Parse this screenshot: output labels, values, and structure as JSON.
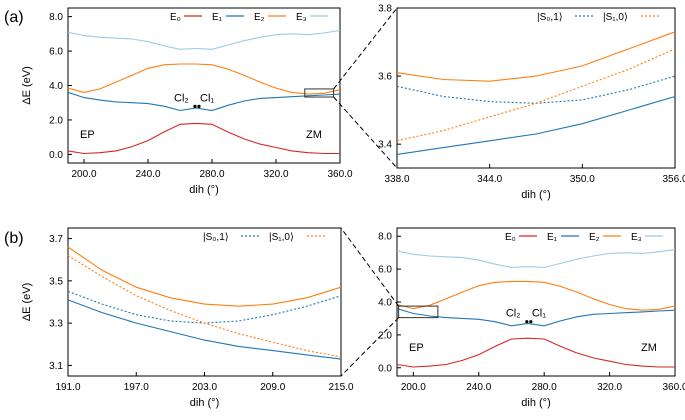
{
  "panel_labels": [
    "(a)",
    "(b)"
  ],
  "colors": {
    "E0": "#d62728",
    "E1": "#1f77b4",
    "E2": "#ff7f0e",
    "E3": "#9ecae1",
    "S0": "#1f77b4",
    "S1": "#ff7f0e"
  },
  "chart_data": [
    {
      "id": "a-left",
      "type": "line",
      "xlabel": "dih (°)",
      "ylabel": "ΔE (eV)",
      "xlim": [
        190,
        360
      ],
      "ylim": [
        -0.5,
        8.5
      ],
      "xticks": [
        "200.0",
        "240.0",
        "280.0",
        "320.0",
        "360.0"
      ],
      "yticks": [
        "0.0",
        "2.0",
        "4.0",
        "6.0",
        "8.0"
      ],
      "legend": [
        "E0",
        "E1",
        "E2",
        "E3"
      ],
      "legend_text": {
        "E0": "E₀",
        "E1": "E₁",
        "E2": "E₂",
        "E3": "E₃"
      },
      "annotations": {
        "ep": "EP",
        "zm": "ZM",
        "cl2": "Cl₂",
        "cl1": "Cl₁"
      },
      "series": [
        {
          "name": "E0",
          "x": [
            190,
            200,
            210,
            220,
            230,
            240,
            250,
            260,
            270,
            280,
            290,
            300,
            310,
            320,
            330,
            340,
            350,
            360
          ],
          "y": [
            0.2,
            0.05,
            0.1,
            0.2,
            0.45,
            0.8,
            1.3,
            1.75,
            1.8,
            1.75,
            1.3,
            0.9,
            0.6,
            0.4,
            0.2,
            0.1,
            0.05,
            0.05
          ]
        },
        {
          "name": "E1",
          "x": [
            190,
            200,
            210,
            220,
            230,
            240,
            250,
            260,
            270,
            280,
            290,
            300,
            310,
            320,
            330,
            340,
            350,
            360
          ],
          "y": [
            3.6,
            3.3,
            3.15,
            3.05,
            3.0,
            2.95,
            2.8,
            2.55,
            2.7,
            2.55,
            2.85,
            3.1,
            3.25,
            3.3,
            3.35,
            3.4,
            3.45,
            3.5
          ]
        },
        {
          "name": "E2",
          "x": [
            190,
            200,
            210,
            220,
            230,
            240,
            250,
            260,
            270,
            280,
            290,
            300,
            310,
            320,
            330,
            340,
            350,
            360
          ],
          "y": [
            3.85,
            3.6,
            3.8,
            4.2,
            4.6,
            5.0,
            5.2,
            5.25,
            5.25,
            5.2,
            4.95,
            4.6,
            4.2,
            3.85,
            3.6,
            3.5,
            3.55,
            3.75
          ]
        },
        {
          "name": "E3",
          "x": [
            190,
            200,
            210,
            220,
            230,
            240,
            250,
            260,
            270,
            280,
            290,
            300,
            310,
            320,
            330,
            340,
            350,
            360
          ],
          "y": [
            7.1,
            6.9,
            6.8,
            6.75,
            6.7,
            6.55,
            6.3,
            6.1,
            6.15,
            6.1,
            6.35,
            6.6,
            6.8,
            6.95,
            7.0,
            6.95,
            7.05,
            7.2
          ]
        }
      ]
    },
    {
      "id": "a-right",
      "type": "line",
      "xlabel": "dih (°)",
      "ylabel": "",
      "xlim": [
        338,
        356
      ],
      "ylim": [
        3.33,
        3.8
      ],
      "xticks": [
        "338.0",
        "344.0",
        "350.0",
        "356.0"
      ],
      "yticks": [
        "3.4",
        "3.6",
        "3.8"
      ],
      "legend": [
        "S0",
        "S1"
      ],
      "legend_text": {
        "S0": "|S₀,1⟩",
        "S1": "|S₁,0⟩"
      },
      "series": [
        {
          "name": "E1",
          "style": "solid",
          "x": [
            338,
            341,
            344,
            347,
            350,
            353,
            356
          ],
          "y": [
            3.37,
            3.39,
            3.41,
            3.43,
            3.46,
            3.5,
            3.54
          ]
        },
        {
          "name": "E2",
          "style": "solid",
          "x": [
            338,
            341,
            344,
            347,
            350,
            353,
            356
          ],
          "y": [
            3.61,
            3.59,
            3.585,
            3.6,
            3.63,
            3.68,
            3.73
          ]
        },
        {
          "name": "S0",
          "style": "dotted",
          "x": [
            338,
            341,
            344,
            347,
            350,
            353,
            356
          ],
          "y": [
            3.57,
            3.54,
            3.525,
            3.52,
            3.53,
            3.56,
            3.6
          ]
        },
        {
          "name": "S1",
          "style": "dotted",
          "x": [
            338,
            341,
            344,
            347,
            350,
            353,
            356
          ],
          "y": [
            3.41,
            3.44,
            3.48,
            3.52,
            3.57,
            3.62,
            3.68
          ]
        }
      ]
    },
    {
      "id": "b-left",
      "type": "line",
      "xlabel": "dih (°)",
      "ylabel": "ΔE (eV)",
      "xlim": [
        191,
        215
      ],
      "ylim": [
        3.05,
        3.75
      ],
      "xticks": [
        "191.0",
        "197.0",
        "203.0",
        "209.0",
        "215.0"
      ],
      "yticks": [
        "3.1",
        "3.3",
        "3.5",
        "3.7"
      ],
      "legend": [
        "S0",
        "S1"
      ],
      "legend_text": {
        "S0": "|S₀,1⟩",
        "S1": "|S₁,0⟩"
      },
      "series": [
        {
          "name": "E2",
          "style": "solid",
          "x": [
            191,
            194,
            197,
            200,
            203,
            206,
            209,
            212,
            215
          ],
          "y": [
            3.66,
            3.55,
            3.47,
            3.42,
            3.39,
            3.38,
            3.39,
            3.42,
            3.47
          ]
        },
        {
          "name": "E1",
          "style": "solid",
          "x": [
            191,
            194,
            197,
            200,
            203,
            206,
            209,
            212,
            215
          ],
          "y": [
            3.41,
            3.35,
            3.3,
            3.26,
            3.22,
            3.19,
            3.17,
            3.15,
            3.13
          ]
        },
        {
          "name": "S0",
          "style": "dotted",
          "x": [
            191,
            194,
            197,
            200,
            203,
            206,
            209,
            212,
            215
          ],
          "y": [
            3.45,
            3.39,
            3.34,
            3.31,
            3.3,
            3.31,
            3.34,
            3.38,
            3.43
          ]
        },
        {
          "name": "S1",
          "style": "dotted",
          "x": [
            191,
            194,
            197,
            200,
            203,
            206,
            209,
            212,
            215
          ],
          "y": [
            3.62,
            3.52,
            3.43,
            3.36,
            3.3,
            3.25,
            3.21,
            3.17,
            3.14
          ]
        }
      ]
    },
    {
      "id": "b-right",
      "type": "line",
      "xlabel": "dih (°)",
      "ylabel": "",
      "xlim": [
        190,
        360
      ],
      "ylim": [
        -0.5,
        8.5
      ],
      "xticks": [
        "200.0",
        "240.0",
        "280.0",
        "320.0",
        "360.0"
      ],
      "yticks": [
        "0.0",
        "2.0",
        "4.0",
        "6.0",
        "8.0"
      ],
      "legend": [
        "E0",
        "E1",
        "E2",
        "E3"
      ],
      "legend_text": {
        "E0": "E₀",
        "E1": "E₁",
        "E2": "E₂",
        "E3": "E₃"
      },
      "annotations": {
        "ep": "EP",
        "zm": "ZM",
        "cl2": "Cl₂",
        "cl1": "Cl₁"
      },
      "series": [
        {
          "name": "E0",
          "x": [
            190,
            200,
            210,
            220,
            230,
            240,
            250,
            260,
            270,
            280,
            290,
            300,
            310,
            320,
            330,
            340,
            350,
            360
          ],
          "y": [
            0.2,
            0.05,
            0.1,
            0.2,
            0.45,
            0.8,
            1.3,
            1.75,
            1.8,
            1.75,
            1.3,
            0.9,
            0.6,
            0.4,
            0.2,
            0.1,
            0.05,
            0.05
          ]
        },
        {
          "name": "E1",
          "x": [
            190,
            200,
            210,
            220,
            230,
            240,
            250,
            260,
            270,
            280,
            290,
            300,
            310,
            320,
            330,
            340,
            350,
            360
          ],
          "y": [
            3.6,
            3.3,
            3.15,
            3.05,
            3.0,
            2.95,
            2.8,
            2.55,
            2.7,
            2.55,
            2.85,
            3.1,
            3.25,
            3.3,
            3.35,
            3.4,
            3.45,
            3.5
          ]
        },
        {
          "name": "E2",
          "x": [
            190,
            200,
            210,
            220,
            230,
            240,
            250,
            260,
            270,
            280,
            290,
            300,
            310,
            320,
            330,
            340,
            350,
            360
          ],
          "y": [
            3.85,
            3.6,
            3.8,
            4.2,
            4.6,
            5.0,
            5.2,
            5.25,
            5.25,
            5.2,
            4.95,
            4.6,
            4.2,
            3.85,
            3.6,
            3.5,
            3.55,
            3.75
          ]
        },
        {
          "name": "E3",
          "x": [
            190,
            200,
            210,
            220,
            230,
            240,
            250,
            260,
            270,
            280,
            290,
            300,
            310,
            320,
            330,
            340,
            350,
            360
          ],
          "y": [
            7.1,
            6.9,
            6.8,
            6.75,
            6.7,
            6.55,
            6.3,
            6.1,
            6.15,
            6.1,
            6.35,
            6.6,
            6.8,
            6.95,
            7.0,
            6.95,
            7.05,
            7.2
          ]
        }
      ]
    }
  ]
}
